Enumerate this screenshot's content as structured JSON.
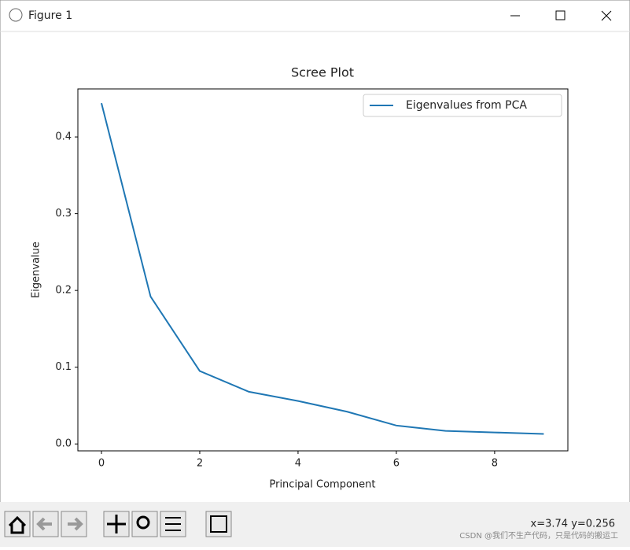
{
  "window": {
    "title": "Figure 1",
    "status": "x=3.74 y=0.256",
    "watermark": "CSDN @我们不生产代码，只是代码的搬运工"
  },
  "chart_data": {
    "type": "line",
    "title": "Scree Plot",
    "x_label": "Principal Component",
    "y_label": "Eigenvalue",
    "x": [
      0,
      1,
      2,
      3,
      4,
      5,
      6,
      7,
      8,
      9
    ],
    "series": [
      {
        "name": "Eigenvalues from PCA",
        "color": "#1f77b4",
        "values": [
          0.444,
          0.192,
          0.095,
          0.068,
          0.056,
          0.042,
          0.024,
          0.017,
          0.015,
          0.013
        ]
      }
    ],
    "xlim": [
      -0.48,
      9.49
    ],
    "ylim": [
      -0.009,
      0.4626
    ],
    "xticks": [
      0,
      2,
      4,
      6,
      8
    ],
    "yticks": [
      {
        "value": 0,
        "label": "0.0"
      },
      0.1,
      0.2,
      0.3,
      0.4
    ],
    "legend": "upper right"
  }
}
